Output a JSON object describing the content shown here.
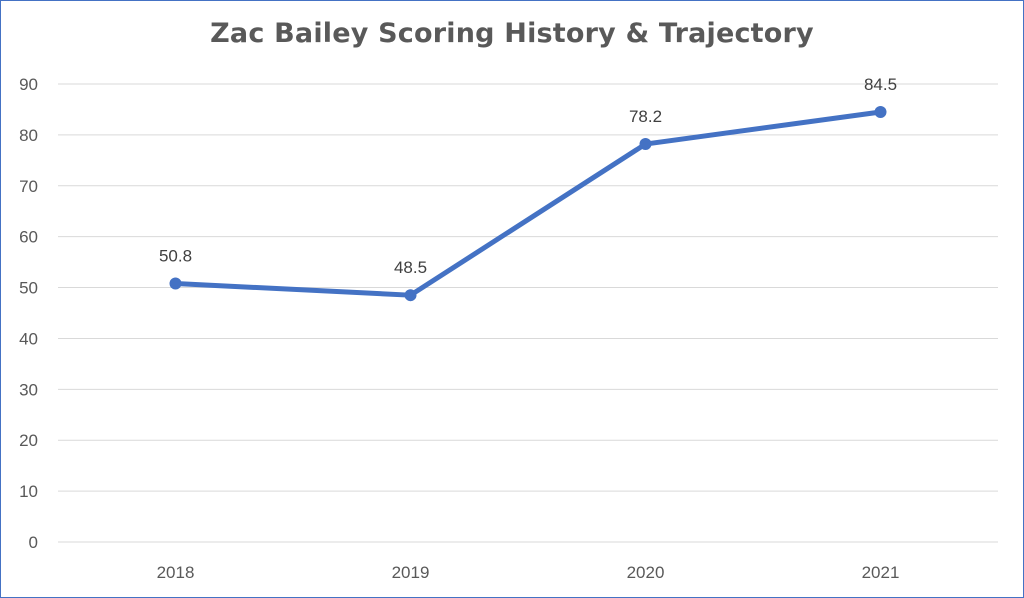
{
  "chart_data": {
    "type": "line",
    "title": "Zac Bailey Scoring History & Trajectory",
    "categories": [
      "2018",
      "2019",
      "2020",
      "2021"
    ],
    "series": [
      {
        "values": [
          50.8,
          48.5,
          78.2,
          84.5
        ],
        "data_labels": [
          "50.8",
          "48.5",
          "78.2",
          "84.5"
        ],
        "color": "#4472c4"
      }
    ],
    "y_ticks": [
      "0",
      "10",
      "20",
      "30",
      "40",
      "50",
      "60",
      "70",
      "80",
      "90"
    ],
    "ylim": [
      0,
      90
    ],
    "xlabel": "",
    "ylabel": "",
    "grid": true,
    "legend": "none"
  },
  "colors": {
    "line": "#4472c4",
    "grid": "#d9d9d9",
    "frame": "#4472c4",
    "text": "#595959"
  }
}
